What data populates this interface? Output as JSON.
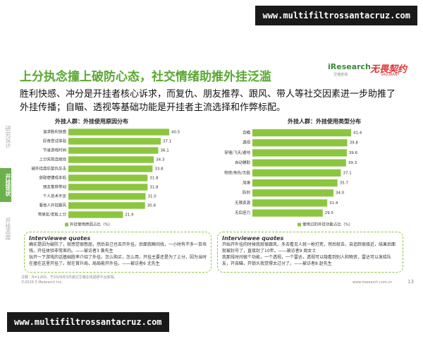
{
  "watermark_top": "www.multifiltrossantacruz.com",
  "watermark_bottom": "www.multifiltrossantacruz.com",
  "logo": {
    "brand": "iResearch",
    "brand_sub": "艾瑞咨询",
    "game": "无畏契约",
    "game_sub": "VALORANT"
  },
  "nav": [
    "研究设计",
    "开挂现状",
    "开挂态度"
  ],
  "title": "上分执念撞上破防心态，社交情绪助推外挂泛滥",
  "subtitle": "胜利快感、冲分是开挂者核心诉求，而复仇、朋友推荐、跟风、带人等社交因素进一步助推了外挂传播；自瞄、透视等基础功能是开挂者主流选择和作弊标配。",
  "chart_data": [
    {
      "type": "hbar",
      "title": "外挂人群：外挂使用原因分布",
      "legend": "外挂使用原因占比（%）",
      "color": "#8cc63f",
      "categories": [
        "追求胜利快感",
        "好奇尝试体验",
        "节省游戏时间",
        "上分失败连续经",
        "被外挂虐后复仇反击",
        "获取便捷成本低",
        "朋友推荐带动",
        "个人技术不足",
        "看他人开挂跟风",
        "带朋友/老板上分"
      ],
      "values": [
        40.5,
        37.1,
        36.1,
        34.3,
        33.8,
        31.8,
        31.8,
        31.0,
        30.8,
        21.9
      ],
      "value_labels": [
        "40.5",
        "37.1",
        "36.1",
        "34.3",
        "33.8",
        "31.8",
        "31.8",
        "31.0",
        "30.8",
        "21.9"
      ]
    },
    {
      "type": "hbar",
      "title": "外挂人群：外挂使用类型分布",
      "legend": "使用过的外挂功能占比（%）",
      "color": "#8cc63f",
      "categories": [
        "自瞄",
        "透视",
        "穿墙/飞天/遁地",
        "自动辅助",
        "物资/免伤/无敌",
        "加速",
        "防封",
        "无限资源",
        "无后座力"
      ],
      "values": [
        41.4,
        39.8,
        39.6,
        39.3,
        37.1,
        35.7,
        34.0,
        31.4,
        29.5
      ],
      "value_labels": [
        "41.4",
        "39.8",
        "39.6",
        "39.3",
        "37.1",
        "35.7",
        "34.0",
        "31.4",
        "29.5"
      ]
    }
  ],
  "quotes": [
    {
      "heading": "Interviewee quotes",
      "items": [
        "确实是因为破防了，就感觉很憋屈，然后自己也去开外挂，后面我瞬间找，一小时有不多一百块钱，开挂体验非常差的。——被访者3 黄先生",
        "玩开一下游戏的话基础胜率介绍了外挂，怎么购买，怎么用，开挂主要还是为了上分，因为当时在撞在这里开挂了。就在首升局，局局能开外挂。——被访者6 尤先生"
      ]
    },
    {
      "heading": "Interviewee quotes",
      "items": [
        "开始开外挂的时候我就很跟风，多去看见人就一枪打死，然后就去，自追踪很接近，结果后面就被封号了，直接封了10年。——被访者9 周女士",
        "我那段时间很个功能，一个透视，一个雷达，透视可以隐看到别人和物资，雷达可以发给队友，开自瞄，开锁头我觉得太过分了。——被访者8 赵先生"
      ]
    }
  ],
  "footer": {
    "copyright": "©2026.3 iResearch Inc.",
    "note": "注释：N=1200，于2026年3月通过艾瑞在线调研平台获得。",
    "site": "www.iresearch.com.cn",
    "page": "13"
  }
}
